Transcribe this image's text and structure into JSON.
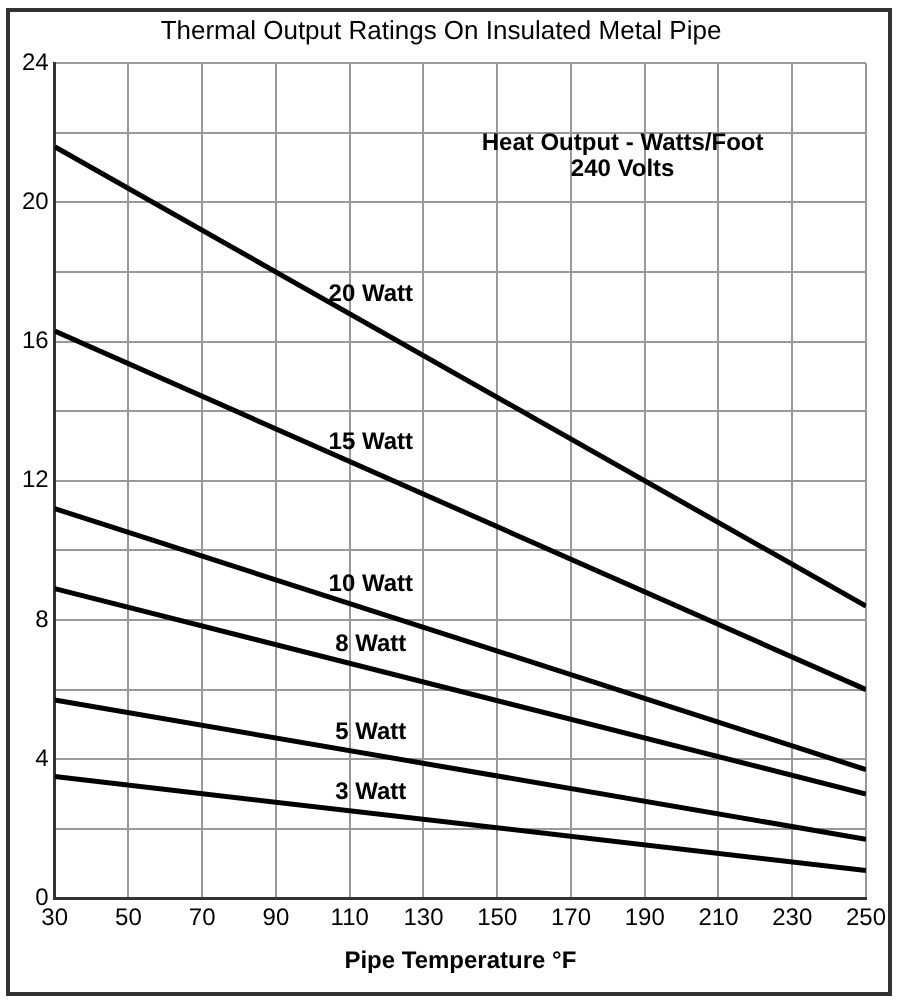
{
  "chart_data": {
    "type": "line",
    "title": "Thermal Output Ratings On Insulated Metal Pipe",
    "xlabel": "Pipe Temperature °F",
    "annotations": [
      "Heat Output - Watts/Foot\n240 Volts"
    ],
    "x": [
      30,
      250
    ],
    "series": [
      {
        "name": "20 Watt",
        "color": "#000000",
        "values": [
          21.6,
          8.4
        ]
      },
      {
        "name": "15 Watt",
        "color": "#000000",
        "values": [
          16.3,
          6.0
        ]
      },
      {
        "name": "10 Watt",
        "color": "#000000",
        "values": [
          11.2,
          3.7
        ]
      },
      {
        "name": "8 Watt",
        "color": "#000000",
        "values": [
          8.9,
          3.0
        ]
      },
      {
        "name": "5 Watt",
        "color": "#000000",
        "values": [
          5.7,
          1.7
        ]
      },
      {
        "name": "3 Watt",
        "color": "#000000",
        "values": [
          3.5,
          0.8
        ]
      }
    ],
    "xlim": [
      30,
      250
    ],
    "xticks": [
      30,
      50,
      70,
      90,
      110,
      130,
      150,
      170,
      190,
      210,
      230,
      250
    ],
    "ylim": [
      0,
      24
    ],
    "yticks": [
      0,
      {
        "value": 2,
        "label": null
      },
      4,
      {
        "value": 6,
        "label": null
      },
      8,
      {
        "value": 10,
        "label": null
      },
      12,
      {
        "value": 14,
        "label": null
      },
      16,
      {
        "value": 18,
        "label": null
      },
      20,
      {
        "value": 22,
        "label": null
      },
      24
    ],
    "grid": true,
    "legend": false,
    "marker": "none",
    "line_style": "solid"
  }
}
